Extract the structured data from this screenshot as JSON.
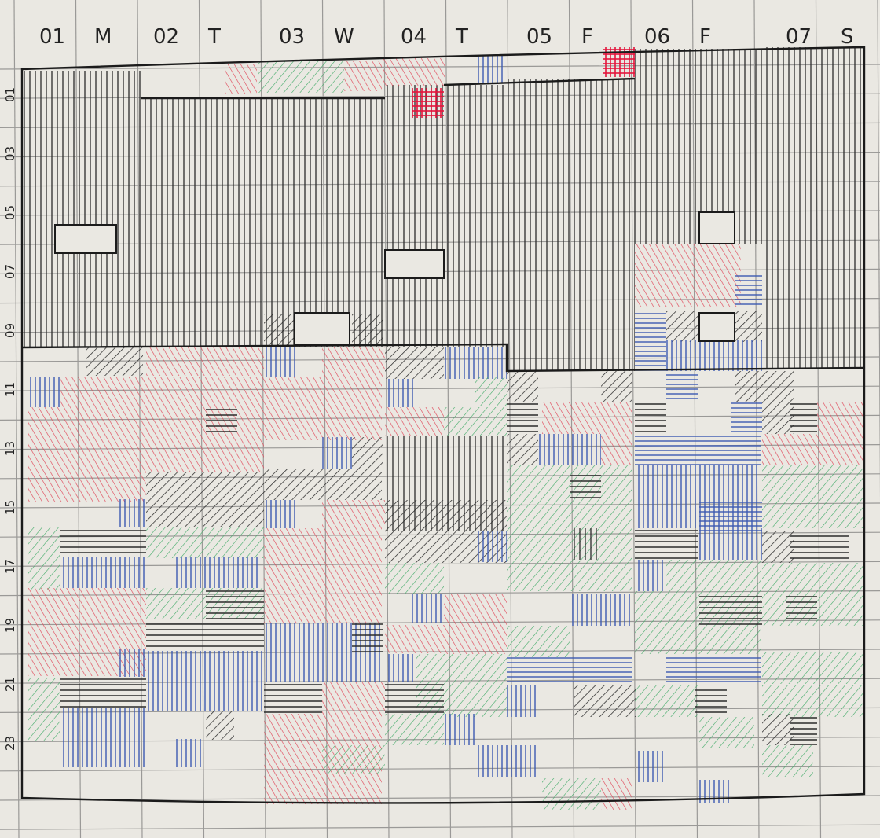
{
  "page": {
    "background": "#eae8e2",
    "ink": "#1f1f1f"
  },
  "day_headers": [
    {
      "num": "01",
      "letter": "M"
    },
    {
      "num": "02",
      "letter": "T"
    },
    {
      "num": "03",
      "letter": "W"
    },
    {
      "num": "04",
      "letter": "T"
    },
    {
      "num": "05",
      "letter": "F"
    },
    {
      "num": "06",
      "letter": "F"
    },
    {
      "num": "07",
      "letter": "S"
    }
  ],
  "hour_labels": [
    "01",
    "03",
    "05",
    "07",
    "09",
    "11",
    "13",
    "15",
    "17",
    "19",
    "21",
    "23"
  ],
  "colors": {
    "red": "#e0485a",
    "green": "#3faa66",
    "blue": "#3c59b0",
    "black": "#222222",
    "dark_red": "#e3143b"
  }
}
